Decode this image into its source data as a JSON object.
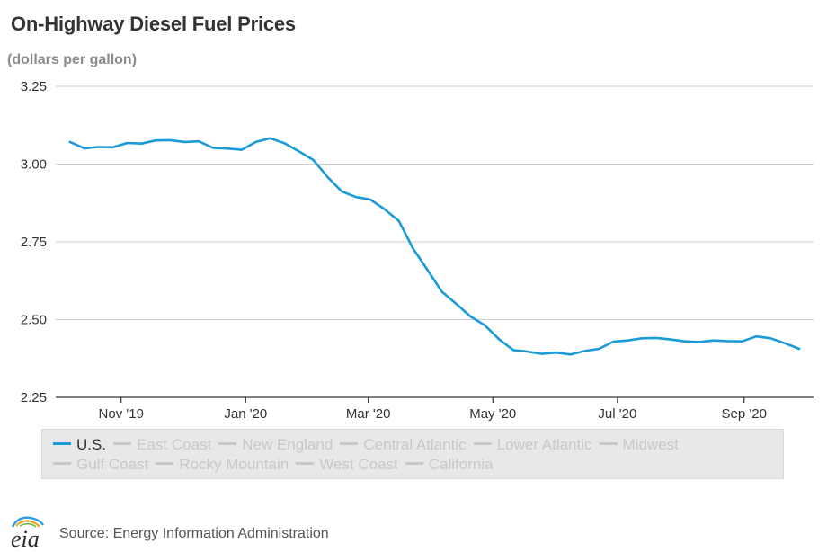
{
  "page": {
    "title": "On-Highway Diesel Fuel Prices",
    "subtitle": "(dollars per gallon)",
    "source": "Source: Energy Information Administration",
    "logo_text": "eia"
  },
  "colors": {
    "us_line": "#1a9ad6",
    "grid": "#cccccc",
    "axis": "#333333",
    "legend_inactive": "#c8c8c8"
  },
  "legend": [
    {
      "label": "U.S.",
      "active": true
    },
    {
      "label": "East Coast",
      "active": false
    },
    {
      "label": "New England",
      "active": false
    },
    {
      "label": "Central Atlantic",
      "active": false
    },
    {
      "label": "Lower Atlantic",
      "active": false
    },
    {
      "label": "Midwest",
      "active": false
    },
    {
      "label": "Gulf Coast",
      "active": false
    },
    {
      "label": "Rocky Mountain",
      "active": false
    },
    {
      "label": "West Coast",
      "active": false
    },
    {
      "label": "California",
      "active": false
    }
  ],
  "chart_data": {
    "type": "line",
    "title": "On-Highway Diesel Fuel Prices",
    "ylabel": "(dollars per gallon)",
    "ylim": [
      2.25,
      3.25
    ],
    "yticks": [
      2.25,
      2.5,
      2.75,
      3.0,
      3.25
    ],
    "ytick_labels": [
      "2.25",
      "2.50",
      "2.75",
      "3.00",
      "3.25"
    ],
    "xlim": [
      "2019-09-30",
      "2020-10-05"
    ],
    "xticks": [
      "2019-11-01",
      "2020-01-01",
      "2020-03-01",
      "2020-05-01",
      "2020-07-01",
      "2020-09-01"
    ],
    "xtick_labels": [
      "Nov '19",
      "Jan '20",
      "Mar '20",
      "May '20",
      "Jul '20",
      "Sep '20"
    ],
    "grid": true,
    "legend_position": "bottom",
    "series": [
      {
        "name": "U.S.",
        "x": [
          "2019-10-07",
          "2019-10-14",
          "2019-10-21",
          "2019-10-28",
          "2019-11-04",
          "2019-11-11",
          "2019-11-18",
          "2019-11-25",
          "2019-12-02",
          "2019-12-09",
          "2019-12-16",
          "2019-12-23",
          "2019-12-30",
          "2020-01-06",
          "2020-01-13",
          "2020-01-20",
          "2020-01-27",
          "2020-02-03",
          "2020-02-10",
          "2020-02-17",
          "2020-02-24",
          "2020-03-02",
          "2020-03-09",
          "2020-03-16",
          "2020-03-23",
          "2020-03-30",
          "2020-04-06",
          "2020-04-13",
          "2020-04-20",
          "2020-04-27",
          "2020-05-04",
          "2020-05-11",
          "2020-05-18",
          "2020-05-25",
          "2020-06-01",
          "2020-06-08",
          "2020-06-15",
          "2020-06-22",
          "2020-06-29",
          "2020-07-06",
          "2020-07-13",
          "2020-07-20",
          "2020-07-27",
          "2020-08-03",
          "2020-08-10",
          "2020-08-17",
          "2020-08-24",
          "2020-08-31",
          "2020-09-07",
          "2020-09-14",
          "2020-09-21",
          "2020-09-28"
        ],
        "values": [
          3.071,
          3.051,
          3.055,
          3.054,
          3.068,
          3.066,
          3.076,
          3.077,
          3.071,
          3.073,
          3.052,
          3.05,
          3.046,
          3.071,
          3.083,
          3.067,
          3.041,
          3.014,
          2.959,
          2.912,
          2.894,
          2.886,
          2.855,
          2.817,
          2.728,
          2.66,
          2.59,
          2.551,
          2.51,
          2.482,
          2.437,
          2.402,
          2.397,
          2.39,
          2.394,
          2.388,
          2.399,
          2.406,
          2.429,
          2.433,
          2.44,
          2.441,
          2.436,
          2.43,
          2.428,
          2.433,
          2.431,
          2.43,
          2.446,
          2.44,
          2.424,
          2.406
        ]
      }
    ]
  }
}
